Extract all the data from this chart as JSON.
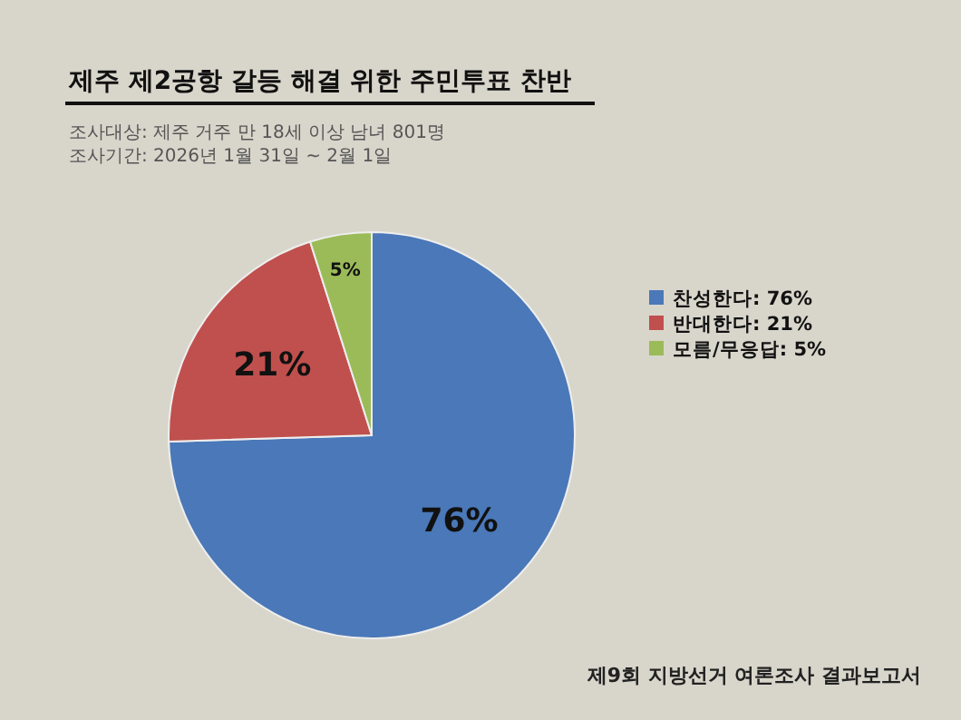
{
  "chart_data": {
    "type": "pie",
    "title": "제주 제2공항 갈등 해결 위한 주민투표 찬반",
    "subtitle": "조사대상: 제주 거주 만 18세 이상 남녀 801명",
    "annotations": [
      "조사기간: 2026년 1월 31일 ~ 2월 1일",
      "제9회 지방선거 여론조사 결과보고서"
    ],
    "categories": [
      "찬성한다: 76%",
      "반대한다: 21%",
      "모름/무응답: 5%"
    ],
    "values": [
      76,
      21,
      5
    ],
    "colors": [
      "#4a78b8",
      "#c0504d",
      "#9bbb59"
    ],
    "value_labels": [
      "76%",
      "21%",
      "5%"
    ],
    "legend": "right"
  }
}
